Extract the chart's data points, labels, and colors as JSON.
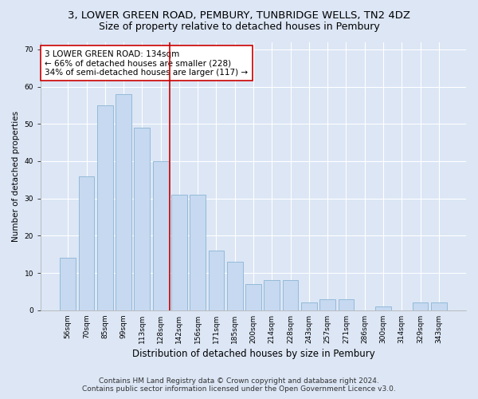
{
  "title": "3, LOWER GREEN ROAD, PEMBURY, TUNBRIDGE WELLS, TN2 4DZ",
  "subtitle": "Size of property relative to detached houses in Pembury",
  "xlabel": "Distribution of detached houses by size in Pembury",
  "ylabel": "Number of detached properties",
  "categories": [
    "56sqm",
    "70sqm",
    "85sqm",
    "99sqm",
    "113sqm",
    "128sqm",
    "142sqm",
    "156sqm",
    "171sqm",
    "185sqm",
    "200sqm",
    "214sqm",
    "228sqm",
    "243sqm",
    "257sqm",
    "271sqm",
    "286sqm",
    "300sqm",
    "314sqm",
    "329sqm",
    "343sqm"
  ],
  "values": [
    14,
    36,
    55,
    58,
    49,
    40,
    31,
    31,
    16,
    13,
    7,
    8,
    8,
    2,
    3,
    3,
    0,
    1,
    0,
    2,
    2
  ],
  "bar_color": "#c6d9f0",
  "bar_edge_color": "#8ab4d4",
  "vline_color": "#cc0000",
  "annotation_text": "3 LOWER GREEN ROAD: 134sqm\n← 66% of detached houses are smaller (228)\n34% of semi-detached houses are larger (117) →",
  "annotation_box_color": "#ffffff",
  "annotation_box_edge_color": "#cc0000",
  "ylim": [
    0,
    72
  ],
  "yticks": [
    0,
    10,
    20,
    30,
    40,
    50,
    60,
    70
  ],
  "footer_line1": "Contains HM Land Registry data © Crown copyright and database right 2024.",
  "footer_line2": "Contains public sector information licensed under the Open Government Licence v3.0.",
  "background_color": "#dce6f5",
  "plot_background_color": "#dce6f5",
  "grid_color": "#ffffff",
  "title_fontsize": 9.5,
  "subtitle_fontsize": 9,
  "annotation_fontsize": 7.5,
  "footer_fontsize": 6.5,
  "ylabel_fontsize": 7.5,
  "xlabel_fontsize": 8.5,
  "tick_fontsize": 6.5
}
